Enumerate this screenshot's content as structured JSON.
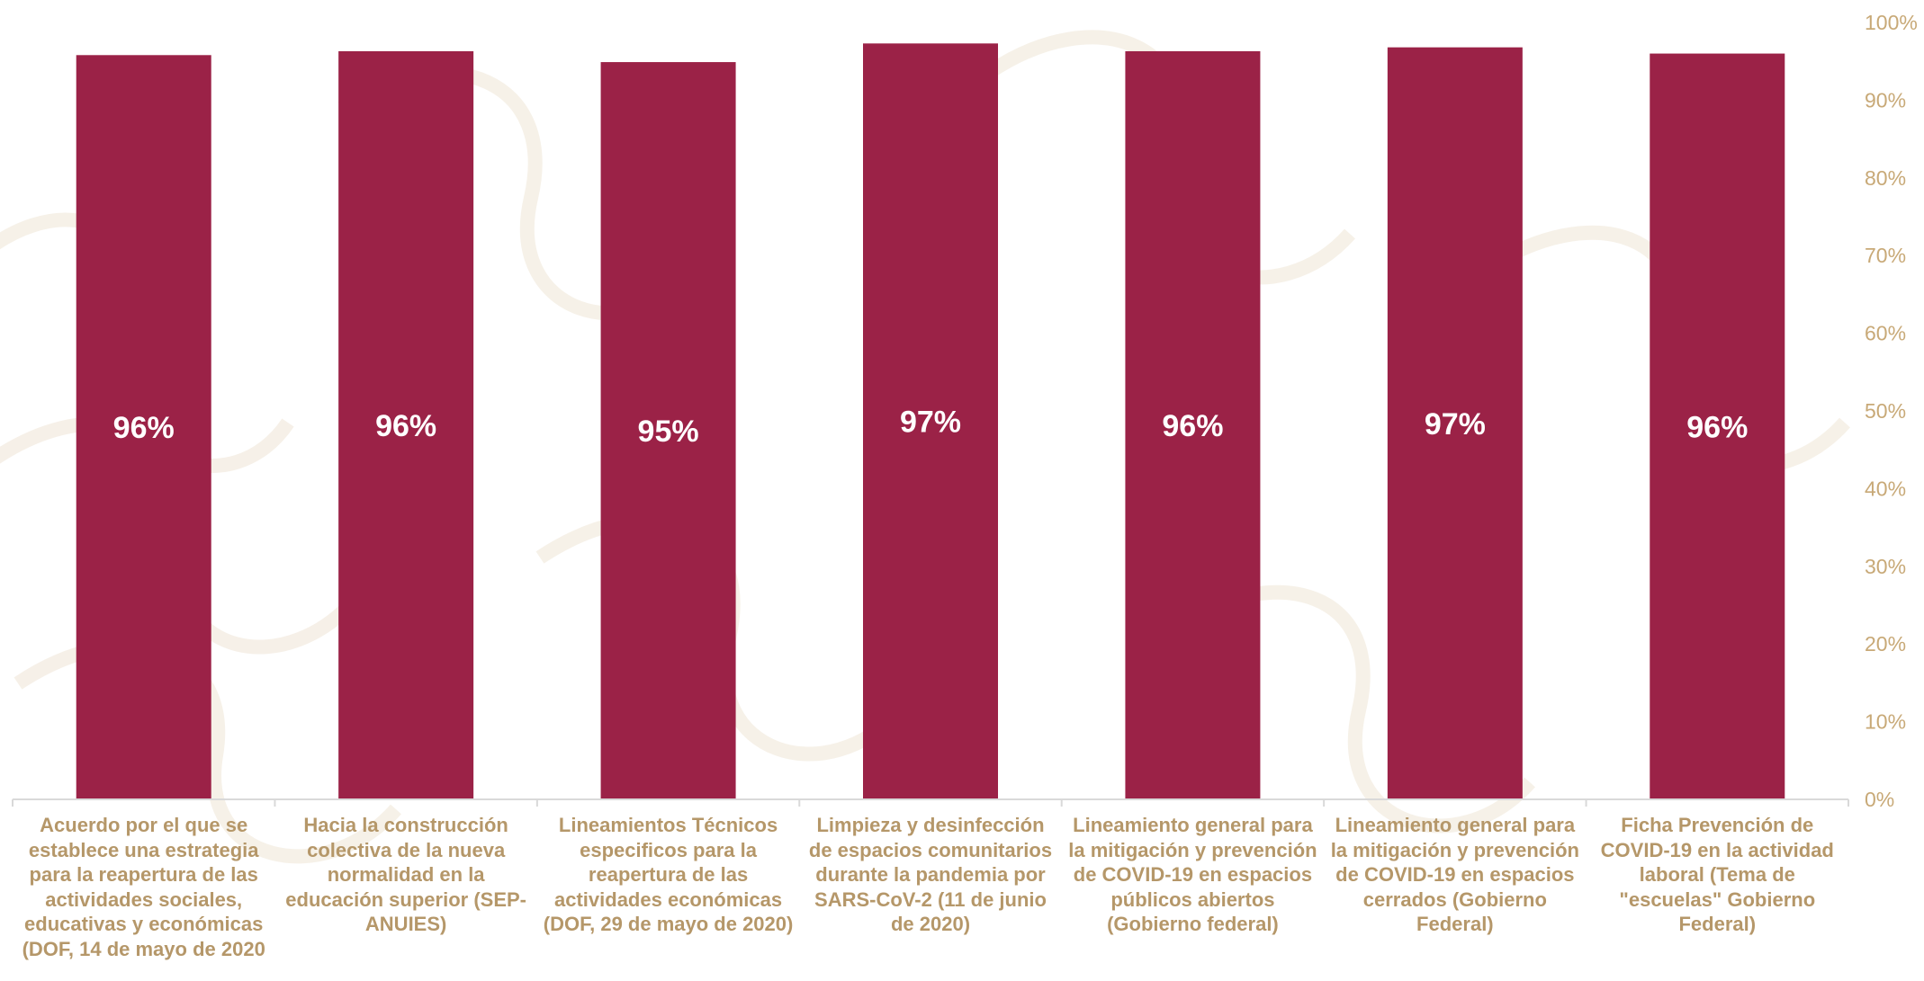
{
  "colors": {
    "bar": "#9b2247",
    "axis_text": "#c8a977",
    "category_text": "#b59769",
    "axis_line": "#d9d9d9"
  },
  "chart_data": {
    "type": "bar",
    "categories": [
      "Acuerdo por el que se establece una estrategia para la reapertura de las actividades sociales, educativas y económicas (DOF, 14 de mayo de 2020",
      "Hacia la construcción colectiva de la nueva normalidad en la educación superior (SEP-ANUIES)",
      "Lineamientos Técnicos especificos para la reapertura de las actividades económicas (DOF, 29 de mayo de 2020)",
      "Limpieza y desinfección de espacios comunitarios durante la pandemia por SARS-CoV-2 (11 de junio de 2020)",
      "Lineamiento general para la mitigación y prevención de COVID-19 en espacios públicos abiertos (Gobierno federal)",
      "Lineamiento general para la mitigación y prevención de COVID-19 en espacios cerrados (Gobierno Federal)",
      "Ficha Prevención de COVID-19 en la actividad laboral (Tema de \"escuelas\" Gobierno Federal)"
    ],
    "values": [
      95.8,
      96.3,
      94.9,
      97.3,
      96.3,
      96.8,
      96.0
    ],
    "data_labels": [
      "96%",
      "96%",
      "95%",
      "97%",
      "96%",
      "97%",
      "96%"
    ],
    "ylim": [
      0,
      100
    ],
    "yticks": [
      "0%",
      "10%",
      "20%",
      "30%",
      "40%",
      "50%",
      "60%",
      "70%",
      "80%",
      "90%",
      "100%"
    ],
    "y_axis_side": "right",
    "grid": false,
    "legend": "none"
  }
}
